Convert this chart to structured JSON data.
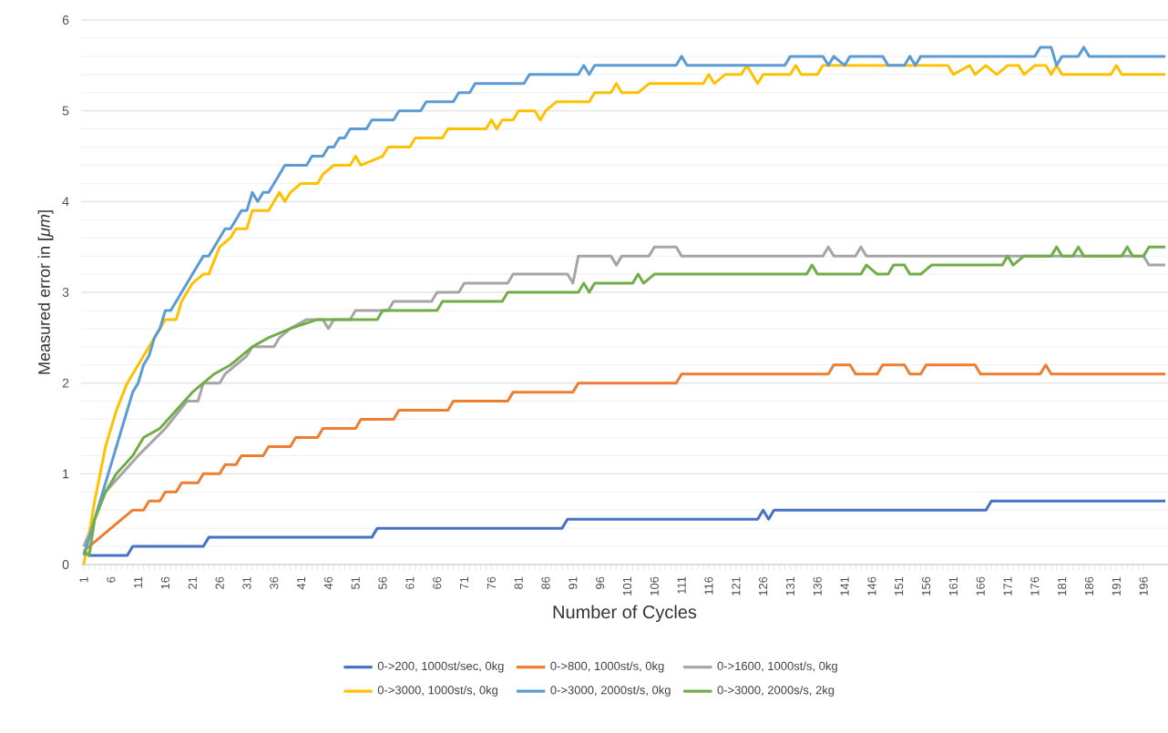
{
  "chart_data": {
    "type": "line",
    "xlabel": "Number of Cycles",
    "ylabel": "Measured error in [*μm*]",
    "xlim": [
      0.5,
      200.5
    ],
    "xticks": [
      1,
      6,
      11,
      16,
      21,
      26,
      31,
      36,
      41,
      46,
      51,
      56,
      61,
      66,
      71,
      76,
      81,
      86,
      91,
      96,
      101,
      106,
      111,
      116,
      121,
      126,
      131,
      136,
      141,
      146,
      151,
      156,
      161,
      166,
      171,
      176,
      181,
      186,
      191,
      196
    ],
    "ylim": [
      0,
      6
    ],
    "yticks": [
      0,
      1,
      2,
      3,
      4,
      5,
      6
    ],
    "grid": "y",
    "legend": "bottom",
    "series": [
      {
        "name": "0->200, 1000st/sec, 0kg",
        "color": "#4472c4",
        "x": [
          1,
          2,
          9,
          10,
          23,
          24,
          54,
          55,
          89,
          90,
          125,
          126,
          127,
          128,
          167,
          168,
          200
        ],
        "values": [
          0.15,
          0.1,
          0.1,
          0.2,
          0.2,
          0.3,
          0.3,
          0.4,
          0.4,
          0.5,
          0.5,
          0.6,
          0.5,
          0.6,
          0.6,
          0.7,
          0.7
        ]
      },
      {
        "name": "0->800, 1000st/s, 0kg",
        "color": "#ed7d31",
        "x": [
          1,
          2,
          4,
          6,
          8,
          10,
          12,
          13,
          15,
          16,
          18,
          19,
          22,
          23,
          26,
          27,
          29,
          30,
          34,
          35,
          39,
          40,
          44,
          45,
          51,
          52,
          58,
          59,
          68,
          69,
          79,
          80,
          91,
          92,
          110,
          111,
          138,
          139,
          142,
          143,
          147,
          148,
          152,
          153,
          155,
          156,
          165,
          166,
          177,
          178,
          179,
          200
        ],
        "values": [
          0.15,
          0.2,
          0.3,
          0.4,
          0.5,
          0.6,
          0.6,
          0.7,
          0.7,
          0.8,
          0.8,
          0.9,
          0.9,
          1.0,
          1.0,
          1.1,
          1.1,
          1.2,
          1.2,
          1.3,
          1.3,
          1.4,
          1.4,
          1.5,
          1.5,
          1.6,
          1.6,
          1.7,
          1.7,
          1.8,
          1.8,
          1.9,
          1.9,
          2.0,
          2.0,
          2.1,
          2.1,
          2.2,
          2.2,
          2.1,
          2.1,
          2.2,
          2.2,
          2.1,
          2.1,
          2.2,
          2.2,
          2.1,
          2.1,
          2.2,
          2.1,
          2.1
        ]
      },
      {
        "name": "0->1600, 1000st/s, 0kg",
        "color": "#a5a5a5",
        "x": [
          1,
          3,
          5,
          8,
          11,
          16,
          20,
          22,
          23,
          26,
          27,
          29,
          31,
          32,
          36,
          37,
          39,
          42,
          45,
          46,
          47,
          50,
          51,
          57,
          58,
          65,
          66,
          70,
          71,
          79,
          80,
          90,
          91,
          92,
          98,
          99,
          100,
          105,
          106,
          110,
          111,
          137,
          138,
          139,
          143,
          144,
          145,
          196,
          197,
          200
        ],
        "values": [
          0.2,
          0.5,
          0.8,
          1.0,
          1.2,
          1.5,
          1.8,
          1.8,
          2.0,
          2.0,
          2.1,
          2.2,
          2.3,
          2.4,
          2.4,
          2.5,
          2.6,
          2.7,
          2.7,
          2.6,
          2.7,
          2.7,
          2.8,
          2.8,
          2.9,
          2.9,
          3.0,
          3.0,
          3.1,
          3.1,
          3.2,
          3.2,
          3.1,
          3.4,
          3.4,
          3.3,
          3.4,
          3.4,
          3.5,
          3.5,
          3.4,
          3.4,
          3.5,
          3.4,
          3.4,
          3.5,
          3.4,
          3.4,
          3.3,
          3.3
        ]
      },
      {
        "name": "0->3000, 1000st/s, 0kg",
        "color": "#ffc000",
        "x": [
          1,
          3,
          5,
          7,
          9,
          12,
          15,
          16,
          18,
          19,
          21,
          23,
          24,
          26,
          28,
          29,
          31,
          32,
          35,
          36,
          37,
          38,
          39,
          41,
          44,
          45,
          47,
          50,
          51,
          52,
          56,
          57,
          61,
          62,
          67,
          68,
          75,
          76,
          77,
          78,
          80,
          81,
          84,
          85,
          86,
          88,
          94,
          95,
          98,
          99,
          100,
          103,
          105,
          115,
          116,
          117,
          119,
          122,
          123,
          124,
          125,
          126,
          127,
          131,
          132,
          133,
          136,
          137,
          160,
          161,
          164,
          165,
          167,
          169,
          171,
          173,
          174,
          176,
          178,
          179,
          180,
          181,
          190,
          191,
          192,
          200
        ],
        "values": [
          0,
          0.7,
          1.3,
          1.7,
          2.0,
          2.3,
          2.6,
          2.7,
          2.7,
          2.9,
          3.1,
          3.2,
          3.2,
          3.5,
          3.6,
          3.7,
          3.7,
          3.9,
          3.9,
          4.0,
          4.1,
          4.0,
          4.1,
          4.2,
          4.2,
          4.3,
          4.4,
          4.4,
          4.5,
          4.4,
          4.5,
          4.6,
          4.6,
          4.7,
          4.7,
          4.8,
          4.8,
          4.9,
          4.8,
          4.9,
          4.9,
          5.0,
          5.0,
          4.9,
          5.0,
          5.1,
          5.1,
          5.2,
          5.2,
          5.3,
          5.2,
          5.2,
          5.3,
          5.3,
          5.4,
          5.3,
          5.4,
          5.4,
          5.5,
          5.4,
          5.3,
          5.4,
          5.4,
          5.4,
          5.5,
          5.4,
          5.4,
          5.5,
          5.5,
          5.4,
          5.5,
          5.4,
          5.5,
          5.4,
          5.5,
          5.5,
          5.4,
          5.5,
          5.5,
          5.4,
          5.5,
          5.4,
          5.4,
          5.5,
          5.4,
          5.4
        ]
      },
      {
        "name": "0->3000, 2000st/s, 0kg",
        "color": "#5b9bd5",
        "x": [
          1,
          3,
          4,
          6,
          8,
          10,
          11,
          12,
          13,
          14,
          15,
          16,
          17,
          18,
          19,
          20,
          21,
          22,
          23,
          24,
          25,
          26,
          27,
          28,
          29,
          30,
          31,
          32,
          33,
          34,
          35,
          36,
          37,
          38,
          42,
          43,
          45,
          46,
          47,
          48,
          49,
          50,
          53,
          54,
          58,
          59,
          63,
          64,
          69,
          70,
          72,
          73,
          82,
          83,
          92,
          93,
          94,
          95,
          110,
          111,
          112,
          130,
          131,
          137,
          138,
          139,
          141,
          142,
          148,
          149,
          152,
          153,
          154,
          155,
          176,
          177,
          179,
          180,
          181,
          184,
          185,
          186,
          200
        ],
        "values": [
          0.1,
          0.5,
          0.7,
          1.1,
          1.5,
          1.9,
          2.0,
          2.2,
          2.3,
          2.5,
          2.6,
          2.8,
          2.8,
          2.9,
          3.0,
          3.1,
          3.2,
          3.3,
          3.4,
          3.4,
          3.5,
          3.6,
          3.7,
          3.7,
          3.8,
          3.9,
          3.9,
          4.1,
          4.0,
          4.1,
          4.1,
          4.2,
          4.3,
          4.4,
          4.4,
          4.5,
          4.5,
          4.6,
          4.6,
          4.7,
          4.7,
          4.8,
          4.8,
          4.9,
          4.9,
          5.0,
          5.0,
          5.1,
          5.1,
          5.2,
          5.2,
          5.3,
          5.3,
          5.4,
          5.4,
          5.5,
          5.4,
          5.5,
          5.5,
          5.6,
          5.5,
          5.5,
          5.6,
          5.6,
          5.5,
          5.6,
          5.5,
          5.6,
          5.6,
          5.5,
          5.5,
          5.6,
          5.5,
          5.6,
          5.6,
          5.7,
          5.7,
          5.5,
          5.6,
          5.6,
          5.7,
          5.6,
          5.6
        ]
      },
      {
        "name": "0->3000, 2000s/s, 2kg",
        "color": "#70ad47",
        "x": [
          1,
          2,
          3,
          5,
          7,
          10,
          12,
          15,
          18,
          21,
          23,
          25,
          28,
          30,
          32,
          35,
          39,
          44,
          55,
          56,
          66,
          67,
          78,
          79,
          92,
          93,
          94,
          95,
          102,
          103,
          104,
          106,
          134,
          135,
          136,
          144,
          145,
          147,
          149,
          150,
          152,
          153,
          155,
          157,
          170,
          171,
          172,
          174,
          179,
          180,
          181,
          183,
          184,
          185,
          192,
          193,
          194,
          196,
          197,
          200
        ],
        "values": [
          0.15,
          0.1,
          0.5,
          0.8,
          1.0,
          1.2,
          1.4,
          1.5,
          1.7,
          1.9,
          2.0,
          2.1,
          2.2,
          2.3,
          2.4,
          2.5,
          2.6,
          2.7,
          2.7,
          2.8,
          2.8,
          2.9,
          2.9,
          3.0,
          3.0,
          3.1,
          3.0,
          3.1,
          3.1,
          3.2,
          3.1,
          3.2,
          3.2,
          3.3,
          3.2,
          3.2,
          3.3,
          3.2,
          3.2,
          3.3,
          3.3,
          3.2,
          3.2,
          3.3,
          3.3,
          3.4,
          3.3,
          3.4,
          3.4,
          3.5,
          3.4,
          3.4,
          3.5,
          3.4,
          3.4,
          3.5,
          3.4,
          3.4,
          3.5,
          3.5
        ]
      }
    ]
  }
}
